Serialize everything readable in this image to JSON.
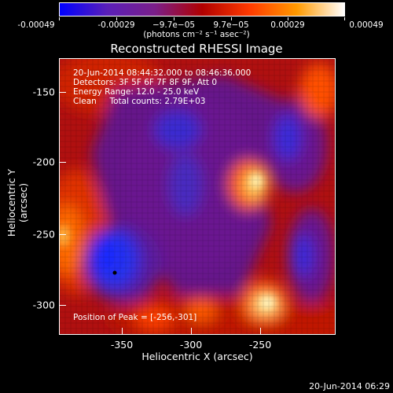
{
  "colorbar": {
    "labels": [
      "-0.00049",
      "-0.00029",
      "−9.7e−05",
      "9.7e−05",
      "0.00029",
      "0.00049"
    ],
    "units": "(photons cm⁻² s⁻¹ asec⁻²)",
    "colors": [
      "#0000ff",
      "#5a1fb8",
      "#7a1f8a",
      "#b00000",
      "#ff3a00",
      "#ff9a00",
      "#ffffff"
    ]
  },
  "title": "Reconstructed RHESSI Image",
  "info": {
    "line1": "20-Jun-2014 08:44:32.000 to 08:46:36.000",
    "line2": "Detectors: 3F 5F 6F 7F 8F 9F, Att 0",
    "line3": "Energy Range: 12.0 - 25.0 keV",
    "line4": "Clean     Total counts: 2.79E+03",
    "peak": "Position of Peak = [-256,-301]"
  },
  "axes": {
    "xlabel": "Heliocentric X (arcsec)",
    "ylabel": "Heliocentric Y (arcsec)",
    "xticks": [
      "-350",
      "-300",
      "-250"
    ],
    "yticks": [
      "-150",
      "-200",
      "-250",
      "-300"
    ]
  },
  "timestamp": "20-Jun-2014 06:29"
}
